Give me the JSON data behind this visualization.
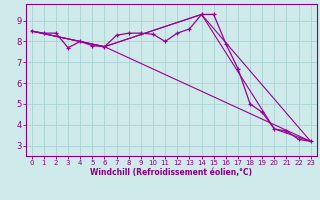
{
  "xlabel": "Windchill (Refroidissement éolien,°C)",
  "bg_color": "#ceeaea",
  "line_color": "#990099",
  "grid_color": "#aad4d4",
  "axis_color": "#880088",
  "xlim": [
    -0.5,
    23.5
  ],
  "ylim": [
    2.5,
    9.8
  ],
  "yticks": [
    3,
    4,
    5,
    6,
    7,
    8,
    9
  ],
  "xticks": [
    0,
    1,
    2,
    3,
    4,
    5,
    6,
    7,
    8,
    9,
    10,
    11,
    12,
    13,
    14,
    15,
    16,
    17,
    18,
    19,
    20,
    21,
    22,
    23
  ],
  "series1_x": [
    0,
    1,
    2,
    3,
    4,
    5,
    6,
    7,
    8,
    9,
    10,
    11,
    12,
    13,
    14,
    15,
    16,
    17,
    18,
    19,
    20,
    21,
    22,
    23
  ],
  "series1_y": [
    8.5,
    8.4,
    8.4,
    7.7,
    8.0,
    7.8,
    7.75,
    8.3,
    8.4,
    8.4,
    8.35,
    8.0,
    8.4,
    8.6,
    9.3,
    9.3,
    7.9,
    6.7,
    5.0,
    4.6,
    3.8,
    3.7,
    3.3,
    3.2
  ],
  "series2_x": [
    0,
    6,
    14,
    23
  ],
  "series2_y": [
    8.5,
    7.75,
    9.3,
    3.2
  ],
  "series3_x": [
    0,
    6,
    14,
    20,
    23
  ],
  "series3_y": [
    8.5,
    7.75,
    9.3,
    3.8,
    3.2
  ],
  "series4_x": [
    0,
    6,
    23
  ],
  "series4_y": [
    8.5,
    7.75,
    3.2
  ]
}
